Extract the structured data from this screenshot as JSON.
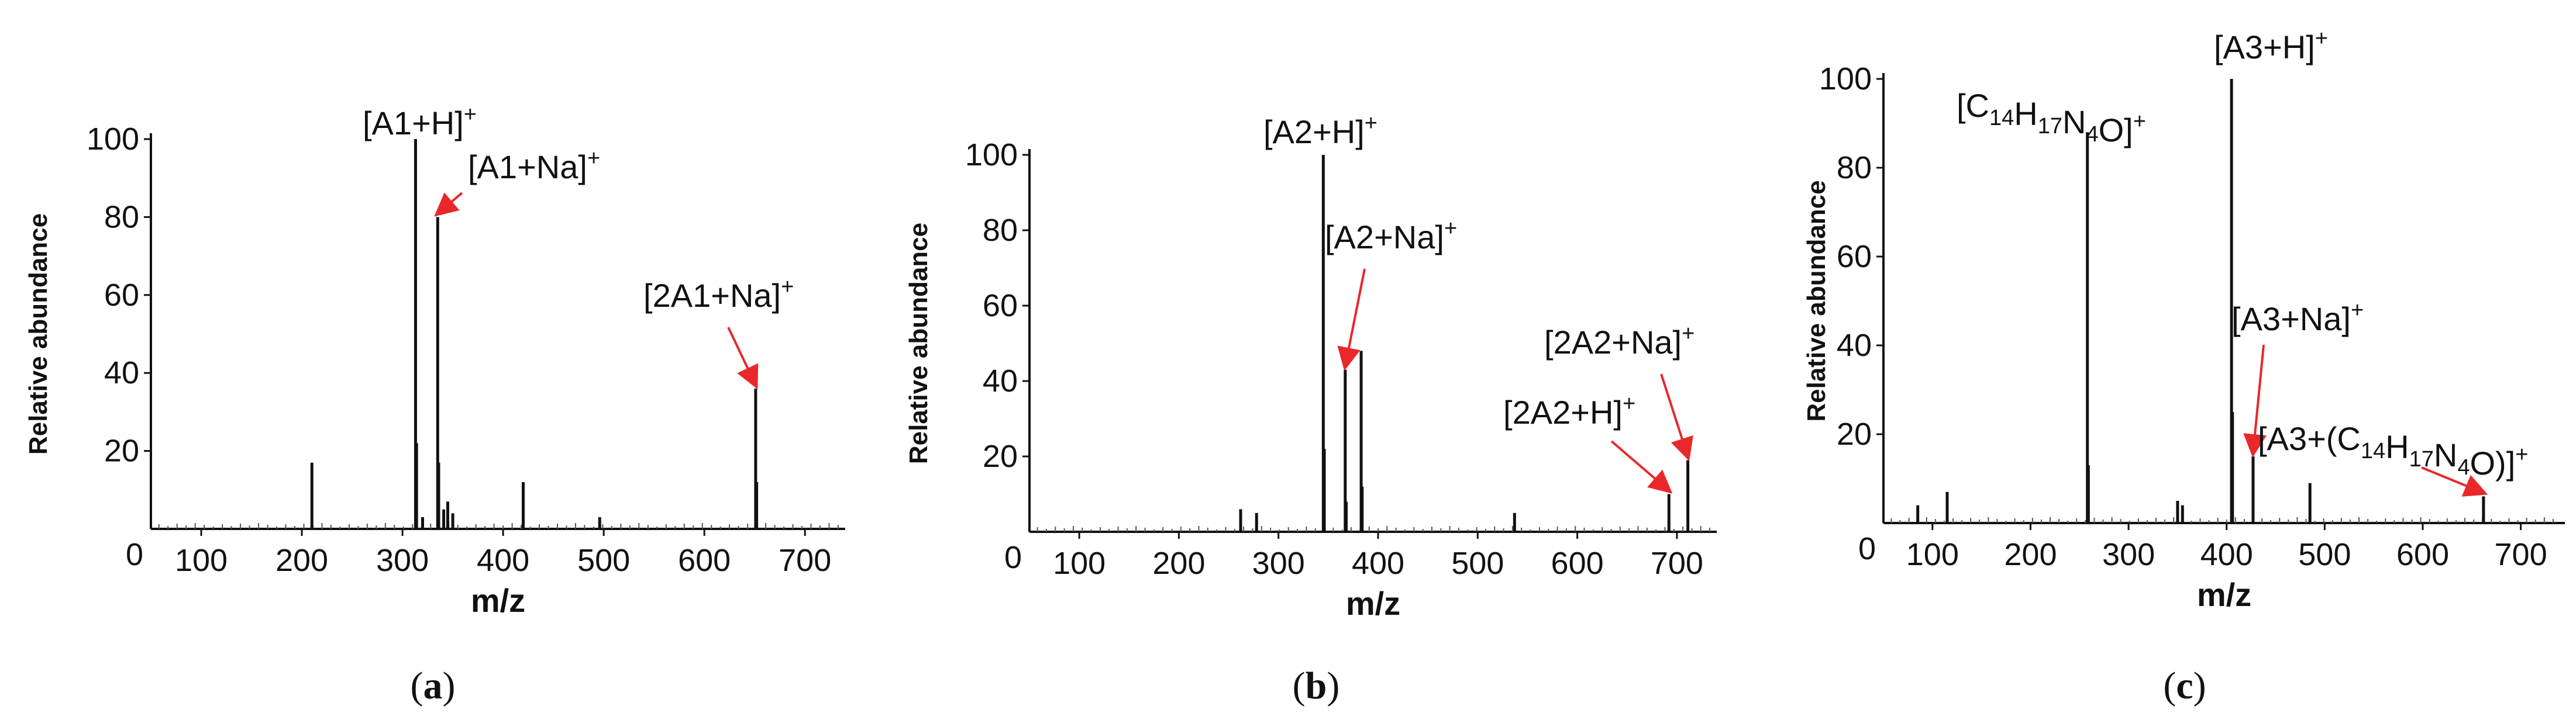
{
  "figure": {
    "panel_labels": [
      "(a)",
      "(b)",
      "(c)"
    ],
    "tick_zero": "0"
  },
  "chart_data": [
    {
      "type": "bar",
      "panel": "(a)",
      "xlabel": "m/z",
      "ylabel": "Relative abundance",
      "xlim": [
        50,
        740
      ],
      "ylim": [
        0,
        100
      ],
      "xticks": [
        100,
        200,
        300,
        400,
        500,
        600,
        700
      ],
      "yticks": [
        20,
        40,
        60,
        80,
        100
      ],
      "peaks": [
        {
          "mz": 210,
          "intensity": 17
        },
        {
          "mz": 313,
          "intensity": 100
        },
        {
          "mz": 314,
          "intensity": 22
        },
        {
          "mz": 320,
          "intensity": 3
        },
        {
          "mz": 335,
          "intensity": 80
        },
        {
          "mz": 336,
          "intensity": 17
        },
        {
          "mz": 341,
          "intensity": 5
        },
        {
          "mz": 345,
          "intensity": 7
        },
        {
          "mz": 350,
          "intensity": 4
        },
        {
          "mz": 420,
          "intensity": 12
        },
        {
          "mz": 496,
          "intensity": 3
        },
        {
          "mz": 651,
          "intensity": 36
        },
        {
          "mz": 652,
          "intensity": 12
        }
      ],
      "annotations": [
        {
          "text": "[A1+H]",
          "sup": "+",
          "mz": 313
        },
        {
          "text": "[A1+Na]",
          "sup": "+",
          "mz": 335,
          "arrow": true
        },
        {
          "text": "[2A1+Na]",
          "sup": "+",
          "mz": 651,
          "arrow": true
        }
      ]
    },
    {
      "type": "bar",
      "panel": "(b)",
      "xlabel": "m/z",
      "ylabel": "Relative abundance",
      "xlim": [
        50,
        740
      ],
      "ylim": [
        0,
        100
      ],
      "xticks": [
        100,
        200,
        300,
        400,
        500,
        600,
        700
      ],
      "yticks": [
        20,
        40,
        60,
        80,
        100
      ],
      "peaks": [
        {
          "mz": 262,
          "intensity": 6
        },
        {
          "mz": 278,
          "intensity": 5
        },
        {
          "mz": 345,
          "intensity": 100
        },
        {
          "mz": 346,
          "intensity": 22
        },
        {
          "mz": 367,
          "intensity": 43
        },
        {
          "mz": 368,
          "intensity": 8
        },
        {
          "mz": 383,
          "intensity": 48
        },
        {
          "mz": 384,
          "intensity": 12
        },
        {
          "mz": 537,
          "intensity": 5
        },
        {
          "mz": 692,
          "intensity": 10
        },
        {
          "mz": 711,
          "intensity": 19
        }
      ],
      "annotations": [
        {
          "text": "[A2+H]",
          "sup": "+",
          "mz": 345
        },
        {
          "text": "[A2+Na]",
          "sup": "+",
          "mz": 367,
          "arrow": true
        },
        {
          "text": "[2A2+Na]",
          "sup": "+",
          "mz": 711,
          "arrow": true
        },
        {
          "text": "[2A2+H]",
          "sup": "+",
          "mz": 692,
          "arrow": true
        }
      ]
    },
    {
      "type": "bar",
      "panel": "(c)",
      "xlabel": "m/z",
      "ylabel": "Relative abundance",
      "xlim": [
        50,
        745
      ],
      "ylim": [
        0,
        100
      ],
      "xticks": [
        100,
        200,
        300,
        400,
        500,
        600,
        700
      ],
      "yticks": [
        20,
        40,
        60,
        80,
        100
      ],
      "peaks": [
        {
          "mz": 85,
          "intensity": 4
        },
        {
          "mz": 115,
          "intensity": 7
        },
        {
          "mz": 258,
          "intensity": 88
        },
        {
          "mz": 259,
          "intensity": 13
        },
        {
          "mz": 350,
          "intensity": 5
        },
        {
          "mz": 355,
          "intensity": 4
        },
        {
          "mz": 405,
          "intensity": 100
        },
        {
          "mz": 406,
          "intensity": 25
        },
        {
          "mz": 427,
          "intensity": 15
        },
        {
          "mz": 485,
          "intensity": 9
        },
        {
          "mz": 662,
          "intensity": 6
        }
      ],
      "annotations": [
        {
          "text": "[C14H17N4O]",
          "sup": "+",
          "mz": 258
        },
        {
          "text": "[A3+H]",
          "sup": "+",
          "mz": 405
        },
        {
          "text": "[A3+Na]",
          "sup": "+",
          "mz": 427,
          "arrow": true
        },
        {
          "text": "[A3+(C14H17N4O)]",
          "sup": "+",
          "mz": 662,
          "arrow": true
        }
      ]
    }
  ]
}
